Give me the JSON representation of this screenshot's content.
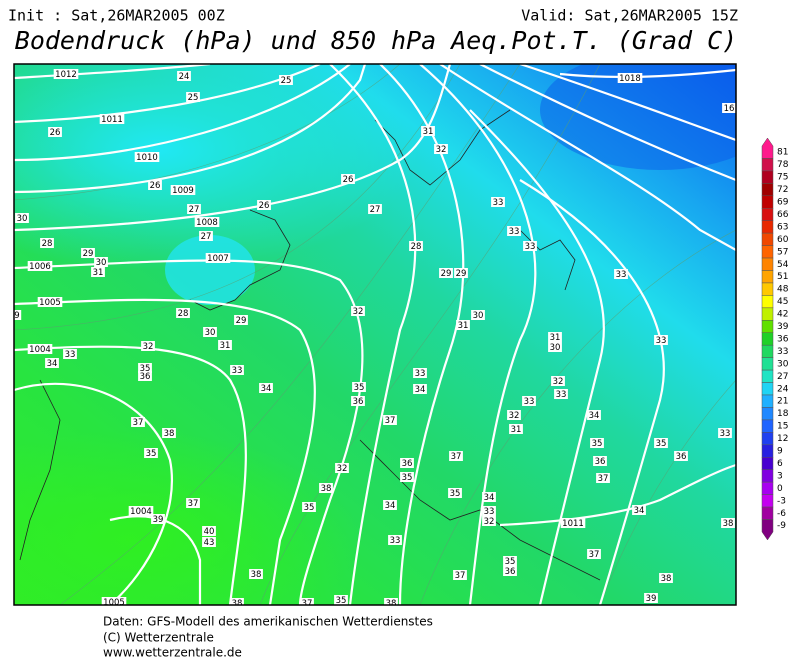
{
  "header": {
    "init": "Init : Sat,26MAR2005 00Z",
    "valid": "Valid: Sat,26MAR2005 15Z",
    "title": "Bodendruck (hPa) und 850 hPa Aeq.Pot.T. (Grad C)"
  },
  "map": {
    "isobar_labels": [
      1012,
      1011,
      1010,
      1009,
      1008,
      1007,
      1006,
      1005,
      1004,
      1004,
      1005,
      1018,
      1011,
      16
    ],
    "temperature_labels": [
      24,
      25,
      25,
      26,
      31,
      32,
      26,
      26,
      27,
      26,
      27,
      33,
      30,
      27,
      33,
      28,
      29,
      28,
      33,
      30,
      31,
      29,
      29,
      33,
      9,
      28,
      32,
      30,
      29,
      30,
      31,
      31,
      33,
      31,
      32,
      30,
      33,
      34,
      35,
      36,
      33,
      33,
      32,
      34,
      35,
      34,
      33,
      36,
      33,
      34,
      32,
      37,
      37,
      31,
      38,
      35,
      35,
      33,
      35,
      37,
      36,
      36,
      36,
      32,
      35,
      37,
      38,
      35,
      34,
      37,
      35,
      34,
      33,
      32,
      34,
      39,
      40,
      43,
      33,
      38,
      37,
      35,
      36,
      37,
      38,
      38,
      39,
      38,
      37,
      35,
      38
    ]
  },
  "colorbar": {
    "labels": [
      81,
      78,
      75,
      72,
      69,
      66,
      63,
      60,
      57,
      54,
      51,
      48,
      45,
      42,
      39,
      36,
      33,
      30,
      27,
      24,
      21,
      18,
      15,
      12,
      9,
      6,
      3,
      0,
      -3,
      -6,
      -9
    ],
    "colors": [
      "#ff1a8c",
      "#d0104a",
      "#b00020",
      "#a00000",
      "#c00000",
      "#d81010",
      "#e82800",
      "#f04800",
      "#ff6400",
      "#ff8400",
      "#ffa400",
      "#ffc800",
      "#ffff00",
      "#c0f000",
      "#60e000",
      "#20d028",
      "#20d860",
      "#20e094",
      "#20e4c4",
      "#20d4f4",
      "#20b0ff",
      "#2088ff",
      "#2064ff",
      "#2040f0",
      "#2820e0",
      "#4800d0",
      "#8000e0",
      "#a800f0",
      "#c400f0",
      "#a000a0",
      "#800080"
    ]
  },
  "footer": {
    "lines": [
      "Daten: GFS-Modell des amerikanischen Wetterdienstes",
      "(C) Wetterzentrale",
      "www.wetterzentrale.de"
    ]
  }
}
